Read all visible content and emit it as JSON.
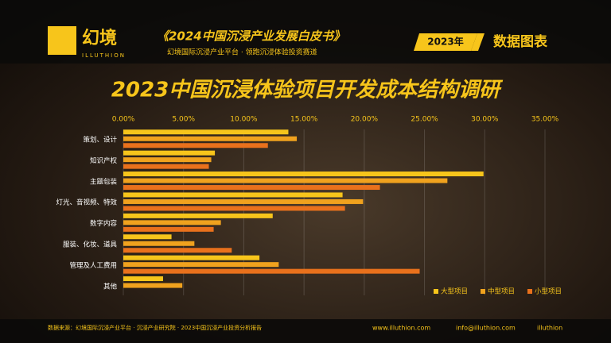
{
  "header": {
    "logo": "幻境",
    "brand": "ILLUTHION",
    "report": "《2024中国沉浸产业发展白皮书》",
    "tagline": "幻境国际沉浸产业平台 · 领跑沉浸体验投资赛道",
    "year_badge": "2023年",
    "section": "数据图表"
  },
  "chart_data": {
    "type": "hbar",
    "title": "2023中国沉浸体验项目开发成本结构调研",
    "categories": [
      "策划、设计",
      "知识产权",
      "主题包装",
      "灯光、音视频、特效",
      "数字内容",
      "服装、化妆、道具",
      "管理及人工费用",
      "其他"
    ],
    "series": [
      {
        "name": "大型项目",
        "color": "#f7c51b",
        "values": [
          13.7,
          7.6,
          29.9,
          18.2,
          12.4,
          4.0,
          11.3,
          3.3
        ]
      },
      {
        "name": "中型项目",
        "color": "#f0a21e",
        "values": [
          14.4,
          7.3,
          26.9,
          19.9,
          8.1,
          5.9,
          12.9,
          4.9
        ]
      },
      {
        "name": "小型项目",
        "color": "#e9711c",
        "values": [
          12.0,
          7.1,
          21.3,
          18.4,
          7.5,
          9.0,
          24.6,
          0
        ]
      }
    ],
    "xlim": [
      0,
      35
    ],
    "xticks": [
      {
        "value": 0,
        "label": "0.00%"
      },
      {
        "value": 5,
        "label": "5.00%"
      },
      {
        "value": 10,
        "label": "10.00%"
      },
      {
        "value": 15,
        "label": "15.00%"
      },
      {
        "value": 20,
        "label": "20.00%"
      },
      {
        "value": 25,
        "label": "25.00%"
      },
      {
        "value": 30,
        "label": "30.00%"
      },
      {
        "value": 35,
        "label": "35.00%"
      }
    ],
    "grid": true,
    "legend": "bottom-right"
  },
  "footer": {
    "source": "数据来源：幻境国际沉浸产业平台 · 沉浸产业研究院 · 2023中国沉浸产业投资分析报告",
    "website": "www.illuthion.com",
    "email": "info@illuthion.com",
    "wechat": "illuthion"
  }
}
